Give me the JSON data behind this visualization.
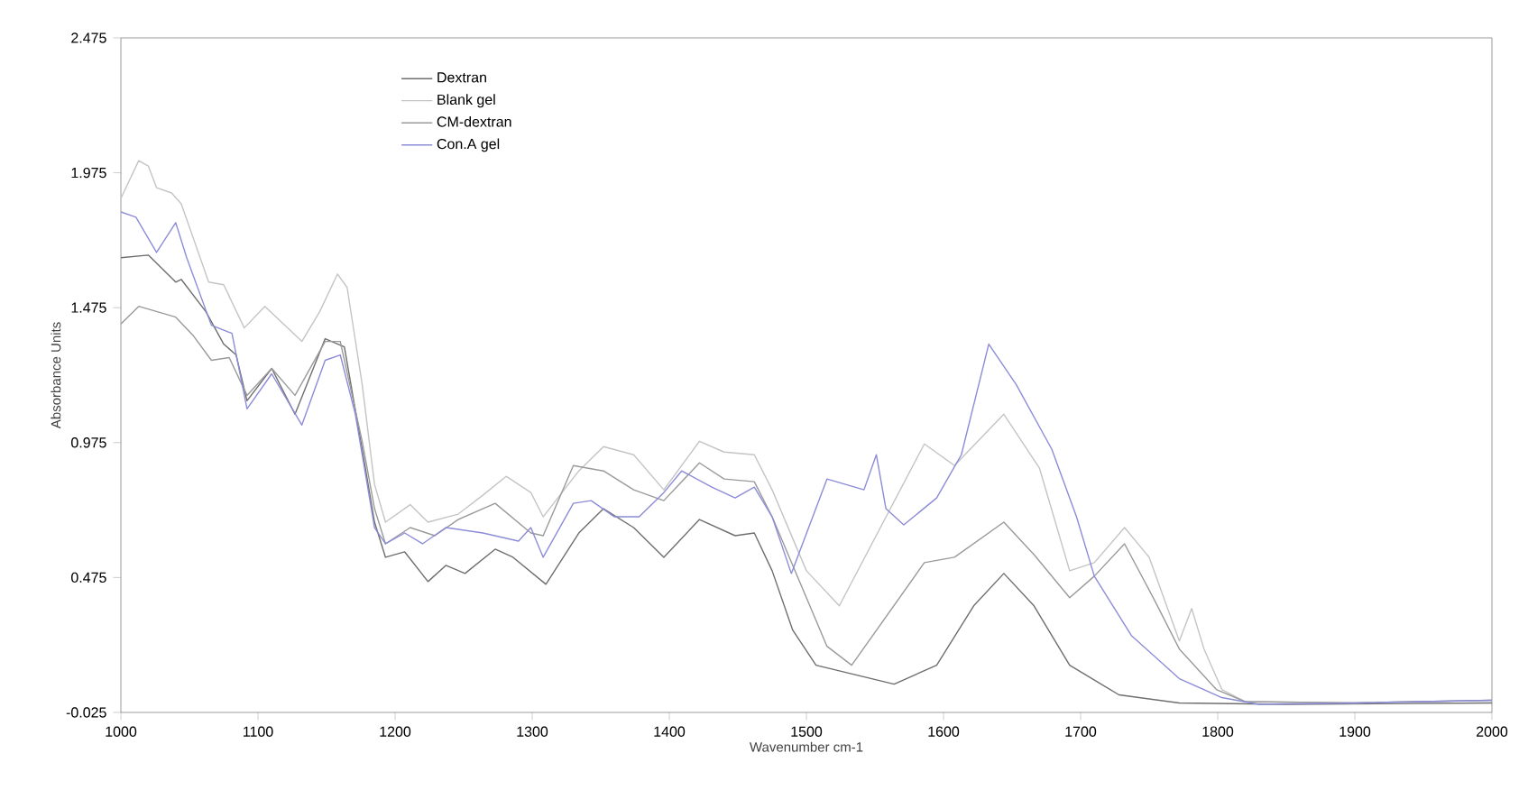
{
  "chart_data": {
    "type": "line",
    "xlabel": "Wavenumber cm-1",
    "ylabel": "Absorbance Units",
    "xlim": [
      1000,
      2000
    ],
    "ylim": [
      -0.025,
      2.475
    ],
    "xticks": [
      1000,
      1100,
      1200,
      1300,
      1400,
      1500,
      1600,
      1700,
      1800,
      1900,
      2000
    ],
    "yticks": [
      -0.025,
      0.475,
      0.975,
      1.475,
      1.975,
      2.475
    ],
    "legend": "top left",
    "series": [
      {
        "name": "Dextran",
        "color": "#6e6e6e",
        "x": [
          1000,
          1020,
          1040,
          1044,
          1062,
          1075,
          1084,
          1092,
          1110,
          1127,
          1149,
          1163,
          1176,
          1185,
          1193,
          1207,
          1224,
          1237,
          1251,
          1273,
          1286,
          1310,
          1334,
          1352,
          1374,
          1396,
          1422,
          1448,
          1462,
          1475,
          1490,
          1507,
          1564,
          1595,
          1622,
          1644,
          1666,
          1692,
          1728,
          1772,
          1850,
          2000
        ],
        "values": [
          1.66,
          1.67,
          1.57,
          1.58,
          1.46,
          1.34,
          1.3,
          1.13,
          1.25,
          1.08,
          1.36,
          1.33,
          0.95,
          0.68,
          0.55,
          0.57,
          0.46,
          0.52,
          0.49,
          0.58,
          0.55,
          0.45,
          0.64,
          0.73,
          0.66,
          0.55,
          0.69,
          0.63,
          0.64,
          0.5,
          0.28,
          0.15,
          0.08,
          0.15,
          0.37,
          0.49,
          0.37,
          0.15,
          0.04,
          0.01,
          0.005,
          0.01
        ]
      },
      {
        "name": "Blank gel",
        "color": "#c4c4c4",
        "x": [
          1000,
          1013,
          1020,
          1026,
          1037,
          1044,
          1053,
          1064,
          1075,
          1090,
          1105,
          1132,
          1145,
          1158,
          1165,
          1176,
          1185,
          1193,
          1211,
          1224,
          1246,
          1264,
          1281,
          1299,
          1308,
          1334,
          1352,
          1374,
          1396,
          1422,
          1440,
          1462,
          1475,
          1500,
          1524,
          1586,
          1608,
          1644,
          1670,
          1692,
          1710,
          1732,
          1750,
          1772,
          1781,
          1790,
          1803,
          1820,
          1900,
          2000
        ],
        "values": [
          1.88,
          2.02,
          2.0,
          1.92,
          1.9,
          1.86,
          1.73,
          1.57,
          1.56,
          1.4,
          1.48,
          1.35,
          1.46,
          1.6,
          1.55,
          1.19,
          0.82,
          0.68,
          0.745,
          0.68,
          0.71,
          0.78,
          0.85,
          0.79,
          0.7,
          0.87,
          0.96,
          0.93,
          0.8,
          0.98,
          0.94,
          0.93,
          0.8,
          0.5,
          0.37,
          0.97,
          0.89,
          1.08,
          0.88,
          0.5,
          0.53,
          0.66,
          0.55,
          0.24,
          0.36,
          0.21,
          0.06,
          0.015,
          0.01,
          0.02
        ]
      },
      {
        "name": "CM-dextran",
        "color": "#9a9a9a",
        "x": [
          1000,
          1013,
          1040,
          1053,
          1066,
          1079,
          1092,
          1110,
          1127,
          1149,
          1160,
          1176,
          1185,
          1193,
          1211,
          1229,
          1246,
          1273,
          1299,
          1308,
          1330,
          1352,
          1374,
          1396,
          1422,
          1440,
          1462,
          1475,
          1500,
          1515,
          1533,
          1586,
          1608,
          1644,
          1666,
          1692,
          1710,
          1732,
          1754,
          1772,
          1799,
          1820,
          1900,
          2000
        ],
        "values": [
          1.415,
          1.48,
          1.44,
          1.37,
          1.28,
          1.29,
          1.15,
          1.25,
          1.15,
          1.35,
          1.35,
          0.98,
          0.73,
          0.6,
          0.66,
          0.63,
          0.69,
          0.75,
          0.64,
          0.63,
          0.89,
          0.87,
          0.8,
          0.76,
          0.9,
          0.84,
          0.83,
          0.7,
          0.4,
          0.22,
          0.15,
          0.53,
          0.55,
          0.68,
          0.56,
          0.4,
          0.48,
          0.6,
          0.39,
          0.21,
          0.06,
          0.015,
          0.01,
          0.02
        ]
      },
      {
        "name": "Con.A gel",
        "color": "#8c8cd8",
        "x": [
          1000,
          1011,
          1026,
          1040,
          1048,
          1066,
          1081,
          1092,
          1110,
          1132,
          1149,
          1160,
          1171,
          1185,
          1193,
          1207,
          1220,
          1237,
          1264,
          1290,
          1299,
          1308,
          1330,
          1343,
          1360,
          1378,
          1396,
          1409,
          1431,
          1448,
          1462,
          1475,
          1489,
          1515,
          1542,
          1551,
          1558,
          1571,
          1595,
          1613,
          1633,
          1653,
          1679,
          1697,
          1710,
          1737,
          1772,
          1803,
          1830,
          1900,
          2000
        ],
        "values": [
          1.83,
          1.81,
          1.68,
          1.79,
          1.66,
          1.41,
          1.38,
          1.1,
          1.23,
          1.04,
          1.28,
          1.3,
          1.08,
          0.66,
          0.6,
          0.64,
          0.6,
          0.66,
          0.64,
          0.61,
          0.66,
          0.55,
          0.75,
          0.76,
          0.7,
          0.7,
          0.79,
          0.87,
          0.81,
          0.77,
          0.81,
          0.7,
          0.49,
          0.84,
          0.8,
          0.93,
          0.73,
          0.67,
          0.77,
          0.93,
          1.34,
          1.19,
          0.95,
          0.7,
          0.48,
          0.26,
          0.1,
          0.03,
          0.005,
          0.01,
          0.02
        ]
      }
    ]
  }
}
